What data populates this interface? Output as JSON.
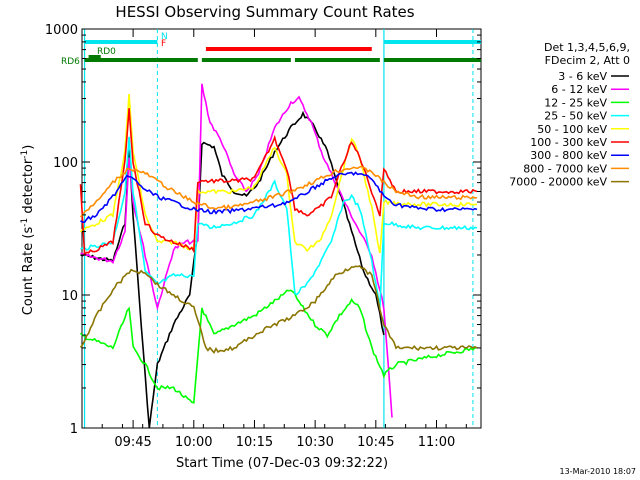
{
  "chart_data": {
    "type": "line",
    "title": "HESSI Observing Summary Count Rates",
    "xlabel": "Start Time (07-Dec-03 09:32:22)",
    "ylabel_main": "Count Rate (s",
    "ylabel_sup1": "-1",
    "ylabel_mid": " detector",
    "ylabel_sup2": "-1",
    "ylabel_end": ")",
    "yscale": "log",
    "ylim": [
      1,
      1000
    ],
    "xlim": [
      "09:32:22",
      "11:11:00"
    ],
    "x_ticks": [
      "09:45",
      "10:00",
      "10:15",
      "10:30",
      "10:45",
      "11:00"
    ],
    "y_ticks": [
      "1",
      "10",
      "100",
      "1000"
    ],
    "legend_header": [
      "Det 1,3,4,5,6,9,",
      "FDecim 2, Att 0"
    ],
    "timestamp": "13-Mar-2010 18:07",
    "flags": [
      {
        "label": "N",
        "color": "#00e5ee",
        "segments": [
          [
            "09:33",
            "09:51"
          ],
          [
            "10:47",
            "11:11"
          ]
        ]
      },
      {
        "label": "F",
        "color": "#ff0000",
        "segments": [
          [
            "10:03",
            "10:44"
          ]
        ]
      },
      {
        "label": "RD0",
        "color": "#007a00",
        "segments": [
          [
            "09:34",
            "09:37"
          ]
        ]
      },
      {
        "label": "RD6",
        "color": "#007a00",
        "segments": [
          [
            "09:33",
            "10:01"
          ],
          [
            "10:02",
            "10:24"
          ],
          [
            "10:25",
            "10:46"
          ],
          [
            "10:47",
            "11:11"
          ]
        ]
      }
    ],
    "vertical_markers": {
      "cyan_solid": [
        "09:33",
        "10:47"
      ],
      "cyan_dashed": [
        "09:51",
        "11:09"
      ]
    },
    "series": [
      {
        "name": "3 - 6 keV",
        "color": "#000000",
        "points": [
          [
            "09:32",
            "20"
          ],
          [
            "09:40",
            "18"
          ],
          [
            "09:43",
            "35"
          ],
          [
            "09:44",
            "120"
          ],
          [
            "09:45",
            "40"
          ],
          [
            "09:47",
            "6"
          ],
          [
            "09:49",
            "1"
          ],
          [
            "09:51",
            "3"
          ],
          [
            "09:55",
            "6"
          ],
          [
            "09:59",
            "10"
          ],
          [
            "10:01",
            "30"
          ],
          [
            "10:02",
            "140"
          ],
          [
            "10:05",
            "130"
          ],
          [
            "10:07",
            "80"
          ],
          [
            "10:10",
            "60"
          ],
          [
            "10:13",
            "55"
          ],
          [
            "10:16",
            "70"
          ],
          [
            "10:20",
            "120"
          ],
          [
            "10:24",
            "180"
          ],
          [
            "10:27",
            "230"
          ],
          [
            "10:30",
            "180"
          ],
          [
            "10:33",
            "120"
          ],
          [
            "10:36",
            "60"
          ],
          [
            "10:39",
            "30"
          ],
          [
            "10:42",
            "15"
          ],
          [
            "10:45",
            "10"
          ],
          [
            "10:47",
            "5"
          ]
        ]
      },
      {
        "name": "6 - 12 keV",
        "color": "#ff00ff",
        "points": [
          [
            "09:32",
            "20"
          ],
          [
            "09:40",
            "18"
          ],
          [
            "09:43",
            "30"
          ],
          [
            "09:44",
            "110"
          ],
          [
            "09:45",
            "50"
          ],
          [
            "09:48",
            "20"
          ],
          [
            "09:51",
            "8"
          ],
          [
            "09:55",
            "22"
          ],
          [
            "09:58",
            "25"
          ],
          [
            "10:01",
            "25"
          ],
          [
            "10:02",
            "380"
          ],
          [
            "10:04",
            "200"
          ],
          [
            "10:07",
            "140"
          ],
          [
            "10:10",
            "80"
          ],
          [
            "10:13",
            "60"
          ],
          [
            "10:16",
            "80"
          ],
          [
            "10:20",
            "180"
          ],
          [
            "10:24",
            "280"
          ],
          [
            "10:26",
            "300"
          ],
          [
            "10:29",
            "200"
          ],
          [
            "10:32",
            "110"
          ],
          [
            "10:35",
            "70"
          ],
          [
            "10:38",
            "45"
          ],
          [
            "10:41",
            "30"
          ],
          [
            "10:44",
            "20"
          ],
          [
            "10:47",
            "8"
          ],
          [
            "10:49",
            "1.2"
          ]
        ]
      },
      {
        "name": "12 - 25 keV",
        "color": "#00ff00",
        "points": [
          [
            "09:32",
            "5"
          ],
          [
            "09:40",
            "4"
          ],
          [
            "09:44",
            "8"
          ],
          [
            "09:45",
            "4"
          ],
          [
            "09:48",
            "3"
          ],
          [
            "09:51",
            "2"
          ],
          [
            "09:55",
            "2"
          ],
          [
            "10:00",
            "1.5"
          ],
          [
            "10:02",
            "8"
          ],
          [
            "10:05",
            "5"
          ],
          [
            "10:10",
            "6"
          ],
          [
            "10:15",
            "7"
          ],
          [
            "10:20",
            "9"
          ],
          [
            "10:24",
            "11"
          ],
          [
            "10:27",
            "8"
          ],
          [
            "10:30",
            "6"
          ],
          [
            "10:33",
            "5"
          ],
          [
            "10:36",
            "7"
          ],
          [
            "10:39",
            "9"
          ],
          [
            "10:41",
            "8"
          ],
          [
            "10:44",
            "4"
          ],
          [
            "10:47",
            "2.5"
          ],
          [
            "10:50",
            "3"
          ],
          [
            "11:00",
            "3.5"
          ],
          [
            "11:10",
            "4"
          ]
        ]
      },
      {
        "name": "25 - 50 keV",
        "color": "#00ffff",
        "points": [
          [
            "09:32",
            "22"
          ],
          [
            "09:40",
            "25"
          ],
          [
            "09:43",
            "60"
          ],
          [
            "09:44",
            "150"
          ],
          [
            "09:45",
            "60"
          ],
          [
            "09:48",
            "15"
          ],
          [
            "09:51",
            "12"
          ],
          [
            "09:55",
            "14"
          ],
          [
            "10:00",
            "14"
          ],
          [
            "10:01",
            "35"
          ],
          [
            "10:04",
            "32"
          ],
          [
            "10:10",
            "35"
          ],
          [
            "10:15",
            "40"
          ],
          [
            "10:20",
            "70"
          ],
          [
            "10:23",
            "45"
          ],
          [
            "10:25",
            "10"
          ],
          [
            "10:28",
            "12"
          ],
          [
            "10:31",
            "17"
          ],
          [
            "10:34",
            "25"
          ],
          [
            "10:37",
            "50"
          ],
          [
            "10:39",
            "55"
          ],
          [
            "10:41",
            "45"
          ],
          [
            "10:44",
            "18"
          ],
          [
            "10:46",
            "8"
          ],
          [
            "10:47",
            "35"
          ],
          [
            "10:55",
            "32"
          ],
          [
            "11:05",
            "32"
          ],
          [
            "11:10",
            "32"
          ]
        ]
      },
      {
        "name": "50 - 100 keV",
        "color": "#ffff00",
        "points": [
          [
            "09:32",
            "30"
          ],
          [
            "09:40",
            "40"
          ],
          [
            "09:43",
            "120"
          ],
          [
            "09:44",
            "320"
          ],
          [
            "09:45",
            "120"
          ],
          [
            "09:48",
            "40"
          ],
          [
            "09:51",
            "25"
          ],
          [
            "09:55",
            "25"
          ],
          [
            "10:00",
            "22"
          ],
          [
            "10:01",
            "60"
          ],
          [
            "10:05",
            "60"
          ],
          [
            "10:10",
            "60"
          ],
          [
            "10:15",
            "65"
          ],
          [
            "10:20",
            "130"
          ],
          [
            "10:23",
            "80"
          ],
          [
            "10:25",
            "25"
          ],
          [
            "10:28",
            "22"
          ],
          [
            "10:31",
            "25"
          ],
          [
            "10:34",
            "40"
          ],
          [
            "10:37",
            "90"
          ],
          [
            "10:39",
            "150"
          ],
          [
            "10:41",
            "110"
          ],
          [
            "10:44",
            "45"
          ],
          [
            "10:46",
            "20"
          ],
          [
            "10:47",
            "50"
          ],
          [
            "10:55",
            "48"
          ],
          [
            "11:05",
            "48"
          ],
          [
            "11:10",
            "48"
          ]
        ]
      },
      {
        "name": "100 - 300 keV",
        "color": "#ff0000",
        "points": [
          [
            "09:32",
            "70"
          ],
          [
            "09:33",
            "20"
          ],
          [
            "09:40",
            "25"
          ],
          [
            "09:43",
            "100"
          ],
          [
            "09:44",
            "250"
          ],
          [
            "09:45",
            "100"
          ],
          [
            "09:48",
            "35"
          ],
          [
            "09:51",
            "28"
          ],
          [
            "09:55",
            "25"
          ],
          [
            "10:00",
            "22"
          ],
          [
            "10:01",
            "72"
          ],
          [
            "10:05",
            "72"
          ],
          [
            "10:10",
            "72"
          ],
          [
            "10:15",
            "75"
          ],
          [
            "10:20",
            "150"
          ],
          [
            "10:23",
            "90"
          ],
          [
            "10:25",
            "45"
          ],
          [
            "10:28",
            "40"
          ],
          [
            "10:31",
            "45"
          ],
          [
            "10:34",
            "55"
          ],
          [
            "10:37",
            "100"
          ],
          [
            "10:39",
            "140"
          ],
          [
            "10:41",
            "110"
          ],
          [
            "10:44",
            "60"
          ],
          [
            "10:46",
            "40"
          ],
          [
            "10:47",
            "90"
          ],
          [
            "10:50",
            "60"
          ],
          [
            "11:00",
            "60"
          ],
          [
            "11:10",
            "60"
          ]
        ]
      },
      {
        "name": "300 - 800 keV",
        "color": "#0000ff",
        "points": [
          [
            "09:32",
            "35"
          ],
          [
            "09:36",
            "40"
          ],
          [
            "09:40",
            "55"
          ],
          [
            "09:44",
            "80"
          ],
          [
            "09:47",
            "65"
          ],
          [
            "09:51",
            "55"
          ],
          [
            "09:55",
            "50"
          ],
          [
            "10:00",
            "44"
          ],
          [
            "10:05",
            "42"
          ],
          [
            "10:10",
            "43"
          ],
          [
            "10:15",
            "45"
          ],
          [
            "10:20",
            "47"
          ],
          [
            "10:25",
            "52"
          ],
          [
            "10:30",
            "65"
          ],
          [
            "10:35",
            "78"
          ],
          [
            "10:40",
            "83"
          ],
          [
            "10:44",
            "75"
          ],
          [
            "10:47",
            "55"
          ],
          [
            "10:50",
            "48"
          ],
          [
            "10:55",
            "45"
          ],
          [
            "11:00",
            "44"
          ],
          [
            "11:10",
            "44"
          ]
        ]
      },
      {
        "name": "800 - 7000 keV",
        "color": "#ff8c00",
        "points": [
          [
            "09:32",
            "40"
          ],
          [
            "09:36",
            "50"
          ],
          [
            "09:40",
            "70"
          ],
          [
            "09:44",
            "90"
          ],
          [
            "09:48",
            "82"
          ],
          [
            "09:51",
            "72"
          ],
          [
            "09:55",
            "60"
          ],
          [
            "10:00",
            "50"
          ],
          [
            "10:05",
            "45"
          ],
          [
            "10:10",
            "46"
          ],
          [
            "10:15",
            "50"
          ],
          [
            "10:20",
            "55"
          ],
          [
            "10:25",
            "62"
          ],
          [
            "10:30",
            "72"
          ],
          [
            "10:35",
            "85"
          ],
          [
            "10:40",
            "92"
          ],
          [
            "10:44",
            "85"
          ],
          [
            "10:47",
            "70"
          ],
          [
            "10:50",
            "60"
          ],
          [
            "10:55",
            "55"
          ],
          [
            "11:00",
            "54"
          ],
          [
            "11:10",
            "54"
          ]
        ]
      },
      {
        "name": "7000 - 20000 keV",
        "color": "#8b7500",
        "points": [
          [
            "09:32",
            "4"
          ],
          [
            "09:36",
            "7"
          ],
          [
            "09:40",
            "11"
          ],
          [
            "09:44",
            "15"
          ],
          [
            "09:48",
            "15"
          ],
          [
            "09:51",
            "12"
          ],
          [
            "09:55",
            "10"
          ],
          [
            "10:00",
            "8"
          ],
          [
            "10:03",
            "4"
          ],
          [
            "10:05",
            "3.8"
          ],
          [
            "10:10",
            "4"
          ],
          [
            "10:15",
            "5"
          ],
          [
            "10:20",
            "6"
          ],
          [
            "10:25",
            "7"
          ],
          [
            "10:30",
            "9"
          ],
          [
            "10:35",
            "14"
          ],
          [
            "10:40",
            "17"
          ],
          [
            "10:44",
            "14"
          ],
          [
            "10:47",
            "6"
          ],
          [
            "10:50",
            "4"
          ],
          [
            "11:00",
            "4"
          ],
          [
            "11:10",
            "4"
          ]
        ]
      }
    ]
  }
}
